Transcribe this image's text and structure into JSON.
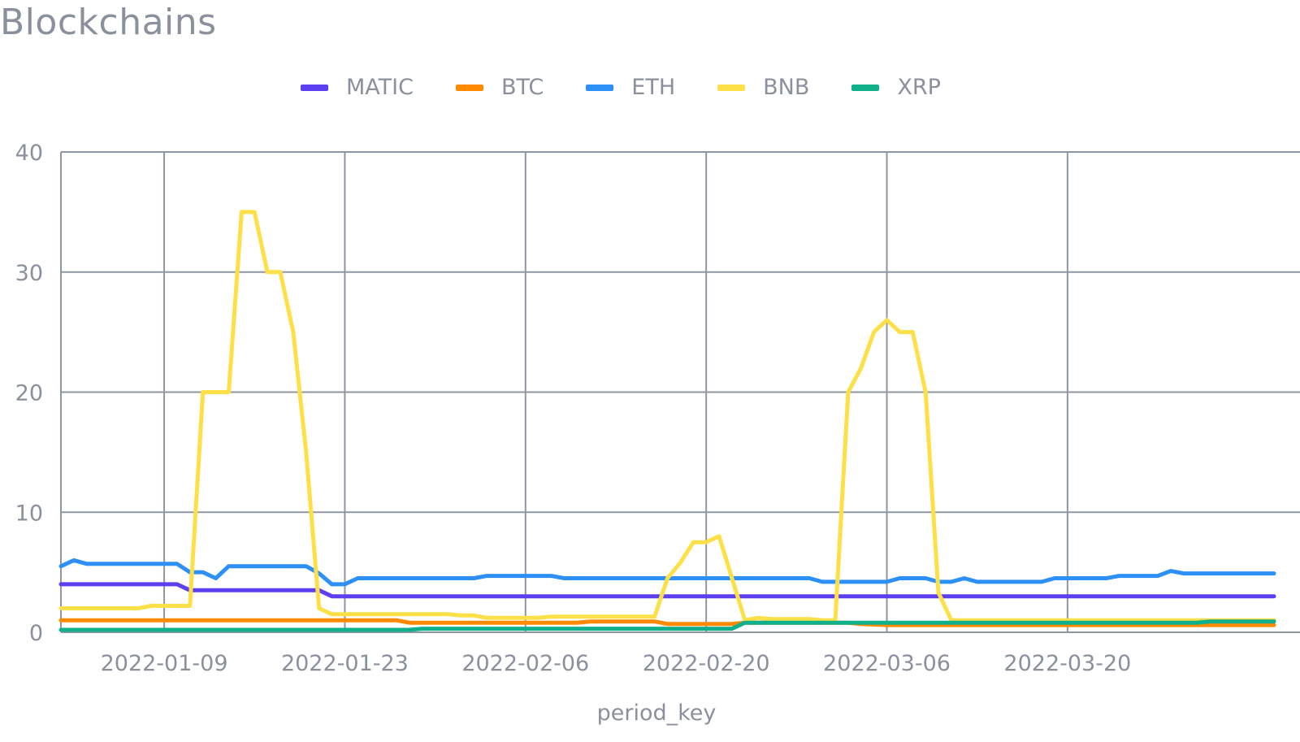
{
  "page": {
    "title": "Blockchains"
  },
  "chart_data": {
    "type": "line",
    "title": "Blockchains",
    "xlabel": "period_key",
    "ylabel": "",
    "ylim": [
      0,
      40
    ],
    "y_ticks": [
      0,
      10,
      20,
      30,
      40
    ],
    "x_start": "2022-01-01",
    "x_range": [
      "2022-01-01",
      "2022-04-05"
    ],
    "x_ticks": [
      "2022-01-09",
      "2022-01-23",
      "2022-02-06",
      "2022-02-20",
      "2022-03-06",
      "2022-03-20"
    ],
    "grid": true,
    "legend_position": "top",
    "series": [
      {
        "name": "MATIC",
        "color": "#5b3ff0",
        "points": [
          [
            "2022-01-01",
            4
          ],
          [
            "2022-01-10",
            4
          ],
          [
            "2022-01-11",
            3.5
          ],
          [
            "2022-01-21",
            3.5
          ],
          [
            "2022-01-22",
            3
          ],
          [
            "2022-04-05",
            3
          ]
        ]
      },
      {
        "name": "BTC",
        "color": "#ff8a00",
        "points": [
          [
            "2022-01-01",
            1
          ],
          [
            "2022-01-27",
            1
          ],
          [
            "2022-01-28",
            0.8
          ],
          [
            "2022-02-10",
            0.8
          ],
          [
            "2022-02-11",
            0.9
          ],
          [
            "2022-02-16",
            0.9
          ],
          [
            "2022-02-17",
            0.7
          ],
          [
            "2022-02-22",
            0.7
          ],
          [
            "2022-02-23",
            0.8
          ],
          [
            "2022-03-03",
            0.8
          ],
          [
            "2022-03-04",
            0.7
          ],
          [
            "2022-03-06",
            0.6
          ],
          [
            "2022-04-05",
            0.6
          ]
        ]
      },
      {
        "name": "ETH",
        "color": "#2d90f7",
        "points": [
          [
            "2022-01-01",
            5.5
          ],
          [
            "2022-01-02",
            6
          ],
          [
            "2022-01-03",
            5.7
          ],
          [
            "2022-01-10",
            5.7
          ],
          [
            "2022-01-11",
            5
          ],
          [
            "2022-01-12",
            5
          ],
          [
            "2022-01-13",
            4.5
          ],
          [
            "2022-01-14",
            5.5
          ],
          [
            "2022-01-20",
            5.5
          ],
          [
            "2022-01-21",
            4.9
          ],
          [
            "2022-01-22",
            4
          ],
          [
            "2022-01-23",
            4
          ],
          [
            "2022-01-24",
            4.5
          ],
          [
            "2022-02-02",
            4.5
          ],
          [
            "2022-02-03",
            4.7
          ],
          [
            "2022-02-08",
            4.7
          ],
          [
            "2022-02-09",
            4.5
          ],
          [
            "2022-02-28",
            4.5
          ],
          [
            "2022-03-01",
            4.2
          ],
          [
            "2022-03-06",
            4.2
          ],
          [
            "2022-03-07",
            4.5
          ],
          [
            "2022-03-09",
            4.5
          ],
          [
            "2022-03-10",
            4.2
          ],
          [
            "2022-03-11",
            4.2
          ],
          [
            "2022-03-12",
            4.5
          ],
          [
            "2022-03-13",
            4.2
          ],
          [
            "2022-03-18",
            4.2
          ],
          [
            "2022-03-19",
            4.5
          ],
          [
            "2022-03-23",
            4.5
          ],
          [
            "2022-03-24",
            4.7
          ],
          [
            "2022-03-27",
            4.7
          ],
          [
            "2022-03-28",
            5.1
          ],
          [
            "2022-03-29",
            4.9
          ],
          [
            "2022-04-05",
            4.9
          ]
        ]
      },
      {
        "name": "BNB",
        "color": "#fde047",
        "points": [
          [
            "2022-01-01",
            2
          ],
          [
            "2022-01-07",
            2
          ],
          [
            "2022-01-08",
            2.2
          ],
          [
            "2022-01-11",
            2.2
          ],
          [
            "2022-01-12",
            20
          ],
          [
            "2022-01-14",
            20
          ],
          [
            "2022-01-15",
            35
          ],
          [
            "2022-01-16",
            35
          ],
          [
            "2022-01-17",
            30
          ],
          [
            "2022-01-18",
            30
          ],
          [
            "2022-01-19",
            25
          ],
          [
            "2022-01-20",
            15
          ],
          [
            "2022-01-21",
            2
          ],
          [
            "2022-01-22",
            1.5
          ],
          [
            "2022-01-31",
            1.5
          ],
          [
            "2022-02-01",
            1.4
          ],
          [
            "2022-02-02",
            1.4
          ],
          [
            "2022-02-03",
            1.2
          ],
          [
            "2022-02-07",
            1.2
          ],
          [
            "2022-02-08",
            1.3
          ],
          [
            "2022-02-16",
            1.3
          ],
          [
            "2022-02-17",
            4.5
          ],
          [
            "2022-02-18",
            5.8
          ],
          [
            "2022-02-19",
            7.5
          ],
          [
            "2022-02-20",
            7.5
          ],
          [
            "2022-02-21",
            8
          ],
          [
            "2022-02-22",
            4.5
          ],
          [
            "2022-02-23",
            1
          ],
          [
            "2022-02-24",
            1.2
          ],
          [
            "2022-02-25",
            1.1
          ],
          [
            "2022-02-28",
            1.1
          ],
          [
            "2022-03-01",
            1
          ],
          [
            "2022-03-02",
            1
          ],
          [
            "2022-03-03",
            20
          ],
          [
            "2022-03-04",
            22
          ],
          [
            "2022-03-05",
            25
          ],
          [
            "2022-03-06",
            26
          ],
          [
            "2022-03-07",
            25
          ],
          [
            "2022-03-08",
            25
          ],
          [
            "2022-03-09",
            20
          ],
          [
            "2022-03-10",
            3.3
          ],
          [
            "2022-03-11",
            1
          ],
          [
            "2022-04-05",
            1
          ]
        ]
      },
      {
        "name": "XRP",
        "color": "#10b08a",
        "points": [
          [
            "2022-01-01",
            0.2
          ],
          [
            "2022-01-28",
            0.2
          ],
          [
            "2022-01-29",
            0.3
          ],
          [
            "2022-02-22",
            0.3
          ],
          [
            "2022-02-23",
            0.8
          ],
          [
            "2022-02-26",
            0.8
          ],
          [
            "2022-02-27",
            0.8
          ],
          [
            "2022-03-30",
            0.8
          ],
          [
            "2022-03-31",
            0.9
          ],
          [
            "2022-04-05",
            0.9
          ]
        ]
      }
    ]
  }
}
